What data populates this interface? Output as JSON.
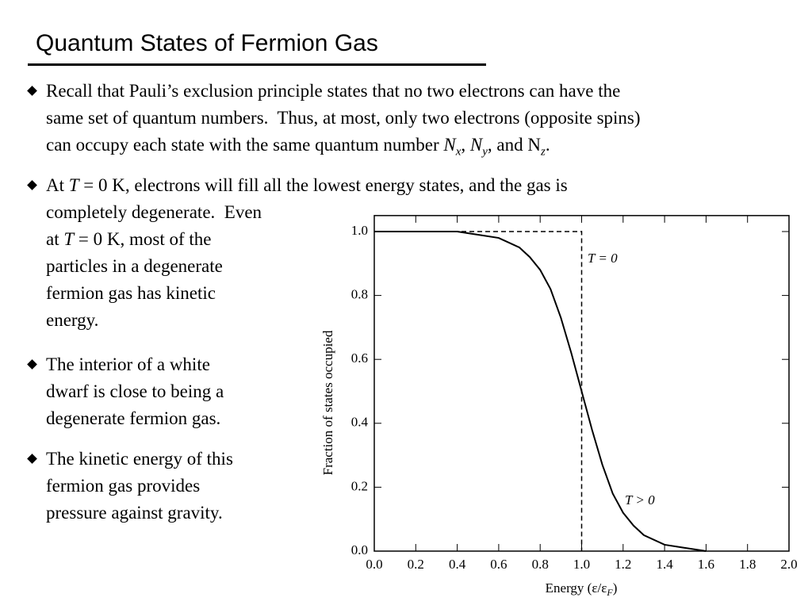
{
  "title": "Quantum States of Fermion Gas",
  "bullets": [
    [
      "Recall that Pauli’s exclusion principle states that no two electrons can have the",
      "same set of quantum numbers.  Thus, at most, only two electrons (opposite spins)",
      "can occupy each state with the same quantum number ",
      "N",
      "x",
      ", ",
      "N",
      "y",
      ", and N",
      "z",
      "."
    ],
    [
      "At ",
      "T",
      " = 0 K, electrons will fill all the lowest energy states, and the gas is",
      "completely degenerate.  Even",
      "at ",
      "T",
      " = 0 K, most of the",
      "particles in a degenerate",
      "fermion gas has kinetic",
      "energy."
    ],
    [
      "The interior of a white",
      "dwarf is close to being a",
      "degenerate fermion gas."
    ],
    [
      "The kinetic energy of this",
      "fermion gas provides",
      "pressure against gravity."
    ]
  ],
  "chart_data": {
    "type": "line",
    "ylabel": "Fraction of states occupied",
    "xlabel": [
      "Energy (ε/ε",
      "F",
      ")"
    ],
    "xlim": [
      0,
      2
    ],
    "ylim": [
      0,
      1.05
    ],
    "xticks": [
      {
        "value": 0,
        "label": "0.0"
      },
      0.2,
      0.4,
      0.6,
      0.8,
      {
        "value": 1,
        "label": "1.0"
      },
      1.2,
      1.4,
      1.6,
      1.8,
      {
        "value": 2,
        "label": "2.0"
      }
    ],
    "yticks": [
      {
        "value": 0,
        "label": "0.0"
      },
      0.2,
      0.4,
      0.6,
      0.8,
      {
        "value": 1,
        "label": "1.0"
      }
    ],
    "series": [
      {
        "name": "T = 0",
        "color": "#000000",
        "dash": true,
        "x": [
          0,
          1,
          1
        ],
        "values": [
          1,
          1,
          0
        ]
      },
      {
        "name": "T > 0",
        "color": "#000000",
        "dash": false,
        "x": [
          0,
          0.2,
          0.4,
          0.5,
          0.6,
          0.7,
          0.75,
          0.8,
          0.85,
          0.9,
          0.95,
          1.0,
          1.05,
          1.1,
          1.15,
          1.2,
          1.25,
          1.3,
          1.4,
          1.5,
          1.6
        ],
        "values": [
          1,
          1,
          1,
          0.99,
          0.98,
          0.95,
          0.92,
          0.88,
          0.82,
          0.73,
          0.62,
          0.5,
          0.38,
          0.27,
          0.18,
          0.12,
          0.08,
          0.05,
          0.02,
          0.01,
          0.0
        ]
      }
    ]
  }
}
